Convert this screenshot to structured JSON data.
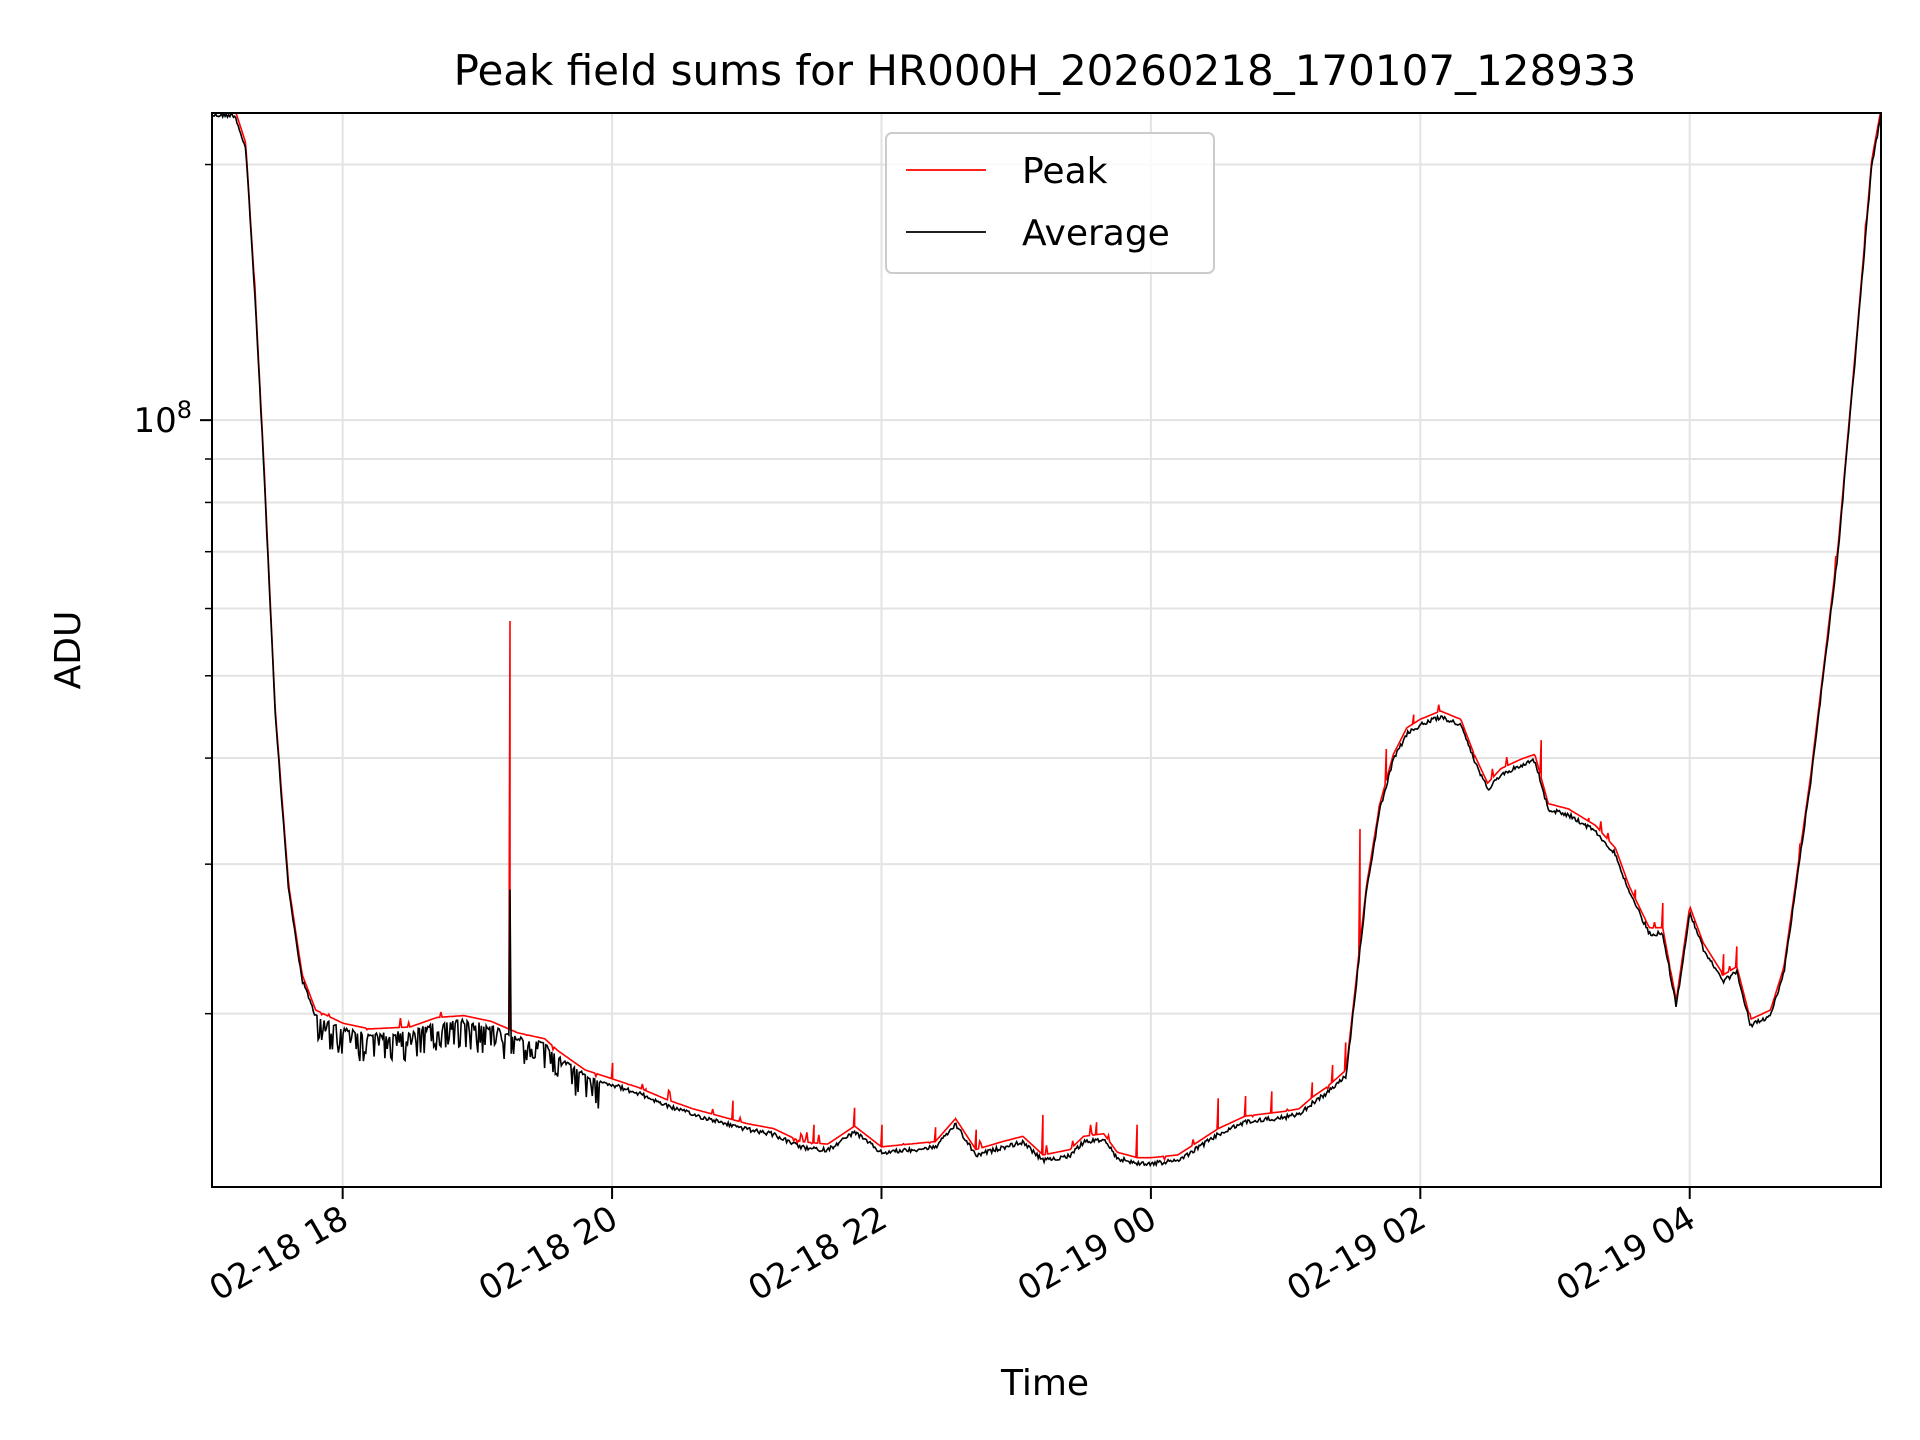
{
  "chart_data": {
    "type": "line",
    "title": "Peak field sums for HR000H_20260218_170107_128933",
    "xlabel": "Time",
    "ylabel": "ADU",
    "yscale": "log",
    "y_major_tick": {
      "value": 100000000,
      "label_base": "10",
      "label_exp": "8"
    },
    "y_minor_ticks": [
      20000000,
      30000000,
      40000000,
      50000000,
      60000000,
      70000000,
      80000000,
      90000000,
      200000000
    ],
    "ylim": [
      12500000,
      230000000
    ],
    "xlim_hours": [
      17.03,
      29.42
    ],
    "x_ticks": [
      {
        "hour": 18,
        "label": "02-18 18"
      },
      {
        "hour": 20,
        "label": "02-18 20"
      },
      {
        "hour": 22,
        "label": "02-18 22"
      },
      {
        "hour": 24,
        "label": "02-19 00"
      },
      {
        "hour": 26,
        "label": "02-19 02"
      },
      {
        "hour": 28,
        "label": "02-19 04"
      }
    ],
    "grid": true,
    "legend_position": "upper-center",
    "series": [
      {
        "name": "Peak",
        "color": "#ff0000"
      },
      {
        "name": "Average",
        "color": "#000000"
      }
    ],
    "average_points": [
      [
        17.03,
        230000000
      ],
      [
        17.2,
        230000000
      ],
      [
        17.28,
        210000000
      ],
      [
        17.35,
        140000000
      ],
      [
        17.42,
        85000000
      ],
      [
        17.5,
        45000000
      ],
      [
        17.6,
        28000000
      ],
      [
        17.7,
        22000000
      ],
      [
        17.8,
        20000000
      ],
      [
        18.0,
        19300000
      ],
      [
        18.2,
        19000000
      ],
      [
        18.5,
        19100000
      ],
      [
        18.7,
        19600000
      ],
      [
        18.9,
        19700000
      ],
      [
        19.1,
        19400000
      ],
      [
        19.3,
        18800000
      ],
      [
        19.5,
        18500000
      ],
      [
        19.6,
        17900000
      ],
      [
        19.8,
        17000000
      ],
      [
        20.0,
        16600000
      ],
      [
        20.2,
        16200000
      ],
      [
        20.4,
        15700000
      ],
      [
        20.6,
        15300000
      ],
      [
        20.8,
        15000000
      ],
      [
        21.0,
        14700000
      ],
      [
        21.2,
        14500000
      ],
      [
        21.4,
        14000000
      ],
      [
        21.6,
        13900000
      ],
      [
        21.8,
        14600000
      ],
      [
        22.0,
        13800000
      ],
      [
        22.2,
        13900000
      ],
      [
        22.4,
        14000000
      ],
      [
        22.55,
        14900000
      ],
      [
        22.7,
        13700000
      ],
      [
        22.9,
        14000000
      ],
      [
        23.05,
        14200000
      ],
      [
        23.2,
        13500000
      ],
      [
        23.4,
        13700000
      ],
      [
        23.5,
        14200000
      ],
      [
        23.65,
        14300000
      ],
      [
        23.75,
        13600000
      ],
      [
        23.9,
        13400000
      ],
      [
        24.0,
        13400000
      ],
      [
        24.2,
        13500000
      ],
      [
        24.5,
        14500000
      ],
      [
        24.7,
        15000000
      ],
      [
        25.0,
        15200000
      ],
      [
        25.1,
        15300000
      ],
      [
        25.2,
        15800000
      ],
      [
        25.3,
        16200000
      ],
      [
        25.45,
        17000000
      ],
      [
        25.6,
        28000000
      ],
      [
        25.7,
        35000000
      ],
      [
        25.8,
        40000000
      ],
      [
        25.9,
        43000000
      ],
      [
        26.0,
        44000000
      ],
      [
        26.15,
        45000000
      ],
      [
        26.3,
        44000000
      ],
      [
        26.4,
        40000000
      ],
      [
        26.5,
        37000000
      ],
      [
        26.6,
        38500000
      ],
      [
        26.75,
        39500000
      ],
      [
        26.85,
        40000000
      ],
      [
        26.95,
        35000000
      ],
      [
        27.1,
        34500000
      ],
      [
        27.3,
        33000000
      ],
      [
        27.45,
        31000000
      ],
      [
        27.55,
        28000000
      ],
      [
        27.7,
        25000000
      ],
      [
        27.8,
        25000000
      ],
      [
        27.9,
        20500000
      ],
      [
        28.0,
        26500000
      ],
      [
        28.1,
        24000000
      ],
      [
        28.25,
        22000000
      ],
      [
        28.35,
        22500000
      ],
      [
        28.45,
        19500000
      ],
      [
        28.6,
        20000000
      ],
      [
        28.7,
        22500000
      ],
      [
        28.9,
        38000000
      ],
      [
        29.1,
        70000000
      ],
      [
        29.25,
        130000000
      ],
      [
        29.35,
        200000000
      ],
      [
        29.42,
        230000000
      ]
    ],
    "peak_spikes": [
      [
        19.24,
        58000000
      ],
      [
        20.0,
        17500000
      ],
      [
        20.25,
        16300000
      ],
      [
        20.9,
        15800000
      ],
      [
        21.5,
        14800000
      ],
      [
        21.8,
        15500000
      ],
      [
        22.0,
        14800000
      ],
      [
        22.4,
        14700000
      ],
      [
        22.55,
        15000000
      ],
      [
        22.7,
        14600000
      ],
      [
        23.2,
        15200000
      ],
      [
        23.6,
        14900000
      ],
      [
        23.9,
        14800000
      ],
      [
        24.5,
        15900000
      ],
      [
        24.7,
        16000000
      ],
      [
        24.9,
        16200000
      ],
      [
        25.2,
        16600000
      ],
      [
        25.35,
        17400000
      ],
      [
        25.45,
        18500000
      ],
      [
        25.55,
        33000000
      ],
      [
        25.75,
        41000000
      ],
      [
        25.95,
        45000000
      ],
      [
        26.4,
        40000000
      ],
      [
        26.9,
        42000000
      ],
      [
        27.25,
        34000000
      ],
      [
        27.6,
        28000000
      ],
      [
        27.8,
        27000000
      ],
      [
        28.25,
        23500000
      ],
      [
        28.35,
        24000000
      ]
    ],
    "average_spike": [
      19.24,
      28000000
    ],
    "average_noise_range_hours": [
      17.8,
      19.9
    ]
  }
}
